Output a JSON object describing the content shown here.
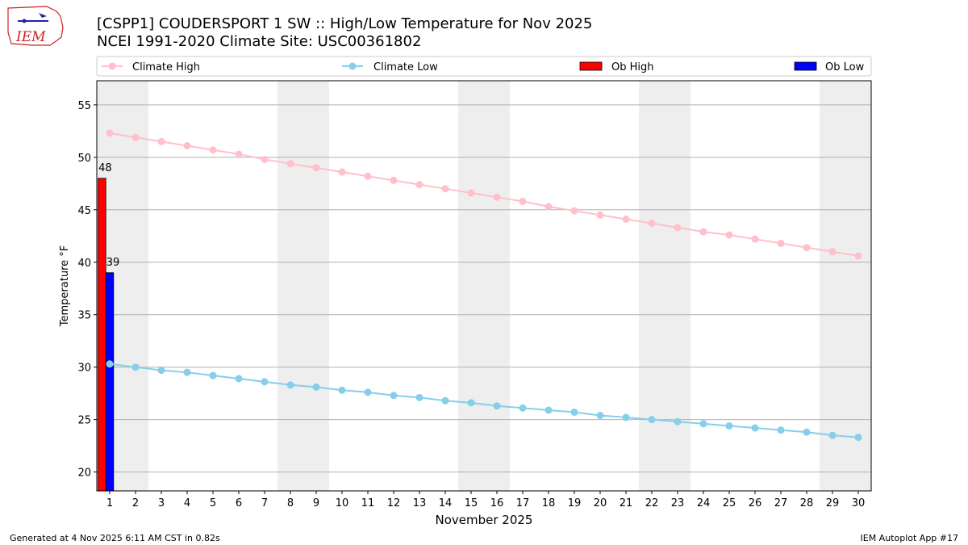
{
  "title_line1": "[CSPP1] COUDERSPORT 1 SW :: High/Low Temperature for Nov 2025",
  "title_line2": "NCEI 1991-2020 Climate Site: USC00361802",
  "logo_text": "IEM",
  "footer_left": "Generated at 4 Nov 2025 6:11 AM CST in 0.82s",
  "footer_right": "IEM Autoplot App #17",
  "colors": {
    "climate_high": "#ffc0cb",
    "climate_low": "#87ceeb",
    "ob_high": "#ff0000",
    "ob_low": "#0000ff",
    "weekend_band": "#eeeeee",
    "grid": "#b0b0b0",
    "logo": "#cc2222"
  },
  "chart_data": {
    "type": "bar+line",
    "title": "[CSPP1] COUDERSPORT 1 SW :: High/Low Temperature for Nov 2025",
    "xlabel": "November 2025",
    "ylabel": "Temperature °F",
    "xlim": [
      0.5,
      30.5
    ],
    "ylim": [
      18.2,
      57.3
    ],
    "yticks": [
      20,
      25,
      30,
      35,
      40,
      45,
      50,
      55
    ],
    "xticks": [
      1,
      2,
      3,
      4,
      5,
      6,
      7,
      8,
      9,
      10,
      11,
      12,
      13,
      14,
      15,
      16,
      17,
      18,
      19,
      20,
      21,
      22,
      23,
      24,
      25,
      26,
      27,
      28,
      29,
      30
    ],
    "grid": "horizontal",
    "legend_position": "top",
    "legend": [
      "Climate High",
      "Climate Low",
      "Ob High",
      "Ob Low"
    ],
    "shaded_day_ranges": [
      [
        0.5,
        2.5
      ],
      [
        7.5,
        9.5
      ],
      [
        14.5,
        16.5
      ],
      [
        21.5,
        23.5
      ],
      [
        28.5,
        30.5
      ]
    ],
    "days": [
      1,
      2,
      3,
      4,
      5,
      6,
      7,
      8,
      9,
      10,
      11,
      12,
      13,
      14,
      15,
      16,
      17,
      18,
      19,
      20,
      21,
      22,
      23,
      24,
      25,
      26,
      27,
      28,
      29,
      30
    ],
    "series": [
      {
        "name": "Climate High",
        "kind": "line",
        "values": [
          52.3,
          51.9,
          51.5,
          51.1,
          50.7,
          50.3,
          49.8,
          49.4,
          49.0,
          48.6,
          48.2,
          47.8,
          47.4,
          47.0,
          46.6,
          46.2,
          45.8,
          45.3,
          44.9,
          44.5,
          44.1,
          43.7,
          43.3,
          42.9,
          42.6,
          42.2,
          41.8,
          41.4,
          41.0,
          40.6
        ]
      },
      {
        "name": "Climate Low",
        "kind": "line",
        "values": [
          30.3,
          30.0,
          29.7,
          29.5,
          29.2,
          28.9,
          28.6,
          28.3,
          28.1,
          27.8,
          27.6,
          27.3,
          27.1,
          26.8,
          26.6,
          26.3,
          26.1,
          25.9,
          25.7,
          25.4,
          25.2,
          25.0,
          24.8,
          24.6,
          24.4,
          24.2,
          24.0,
          23.8,
          23.5,
          23.3
        ]
      },
      {
        "name": "Ob High",
        "kind": "bar",
        "days": [
          1
        ],
        "values": [
          48
        ],
        "labels": [
          "48"
        ]
      },
      {
        "name": "Ob Low",
        "kind": "bar",
        "days": [
          1
        ],
        "values": [
          39
        ],
        "labels": [
          "39"
        ]
      }
    ]
  }
}
